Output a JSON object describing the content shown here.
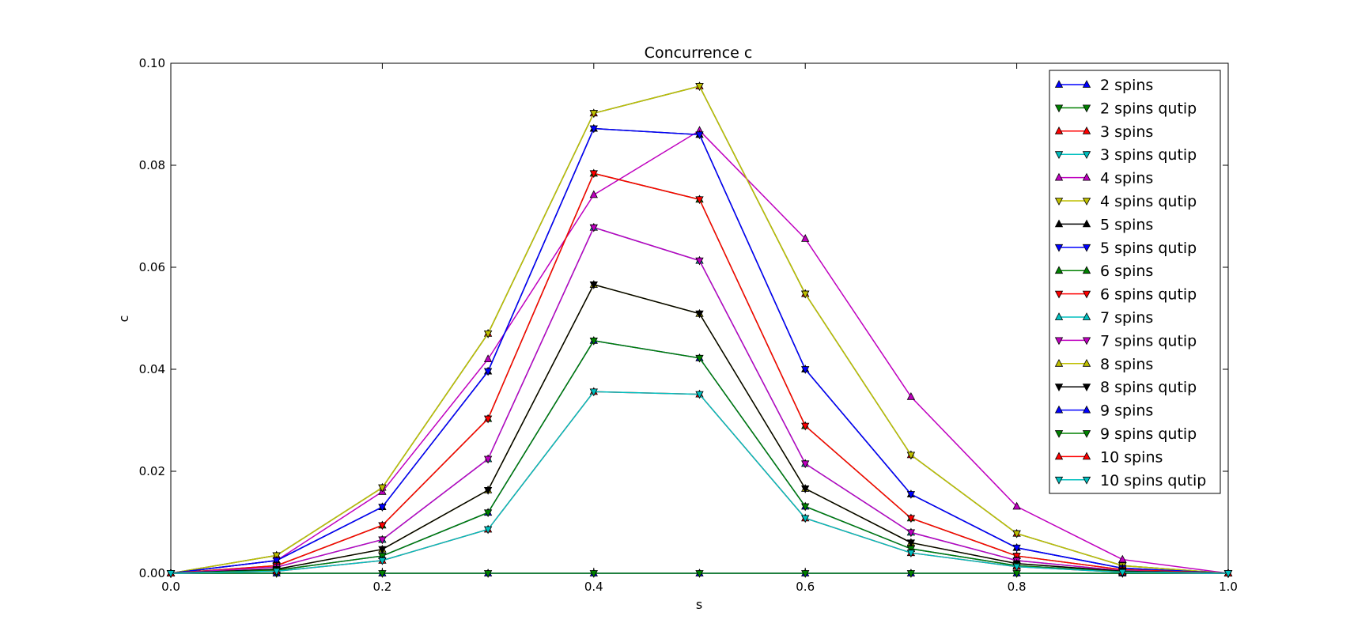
{
  "chart_data": {
    "type": "line",
    "title": "Concurrence c",
    "xlabel": "s",
    "ylabel": "c",
    "xlim": [
      0.0,
      1.0
    ],
    "ylim": [
      0.0,
      0.1
    ],
    "x_ticks": [
      "0.0",
      "0.2",
      "0.4",
      "0.6",
      "0.8",
      "1.0"
    ],
    "y_ticks": [
      "0.00",
      "0.02",
      "0.04",
      "0.06",
      "0.08",
      "0.10"
    ],
    "grid": false,
    "legend_position": "top-right",
    "x": [
      0.0,
      0.1,
      0.2,
      0.3,
      0.4,
      0.5,
      0.6,
      0.7,
      0.8,
      0.9,
      1.0
    ],
    "series": [
      {
        "name": "2 spins",
        "color": "#0000ff",
        "marker": "triangle-up",
        "values": [
          0,
          0,
          0,
          0,
          0,
          0,
          0,
          0,
          0,
          0,
          0
        ]
      },
      {
        "name": "2 spins qutip",
        "color": "#008000",
        "marker": "triangle-down",
        "values": [
          0,
          0,
          0,
          0,
          0,
          0,
          0,
          0,
          0,
          0,
          0
        ]
      },
      {
        "name": "3 spins",
        "color": "#ff0000",
        "marker": "triangle-up",
        "values": [
          0,
          0.0035,
          0.0168,
          0.047,
          0.0902,
          0.0955,
          0.0548,
          0.0232,
          0.0078,
          0.0015,
          0
        ]
      },
      {
        "name": "3 spins qutip",
        "color": "#00bfbf",
        "marker": "triangle-down",
        "values": [
          0,
          0.0035,
          0.0168,
          0.047,
          0.0902,
          0.0955,
          0.0548,
          0.0232,
          0.0078,
          0.0015,
          0
        ]
      },
      {
        "name": "4 spins",
        "color": "#bf00bf",
        "marker": "triangle-up",
        "values": [
          0,
          0.0025,
          0.016,
          0.042,
          0.0742,
          0.0868,
          0.0656,
          0.0346,
          0.0131,
          0.0027,
          0
        ]
      },
      {
        "name": "4 spins qutip",
        "color": "#bfbf00",
        "marker": "triangle-down",
        "values": [
          0,
          0.0035,
          0.0168,
          0.047,
          0.0902,
          0.0955,
          0.0548,
          0.0232,
          0.0078,
          0.0015,
          0
        ]
      },
      {
        "name": "5 spins",
        "color": "#000000",
        "marker": "triangle-up",
        "values": [
          0,
          0.0025,
          0.013,
          0.0396,
          0.0872,
          0.086,
          0.04,
          0.0155,
          0.005,
          0.001,
          0
        ]
      },
      {
        "name": "5 spins qutip",
        "color": "#0000ff",
        "marker": "triangle-down",
        "values": [
          0,
          0.0025,
          0.013,
          0.0396,
          0.0872,
          0.086,
          0.04,
          0.0155,
          0.005,
          0.001,
          0
        ]
      },
      {
        "name": "6 spins",
        "color": "#008000",
        "marker": "triangle-up",
        "values": [
          0,
          0.0015,
          0.0094,
          0.0303,
          0.0784,
          0.0733,
          0.0289,
          0.0108,
          0.0034,
          0.0007,
          0
        ]
      },
      {
        "name": "6 spins qutip",
        "color": "#ff0000",
        "marker": "triangle-down",
        "values": [
          0,
          0.0015,
          0.0094,
          0.0303,
          0.0784,
          0.0733,
          0.0289,
          0.0108,
          0.0034,
          0.0007,
          0
        ]
      },
      {
        "name": "7 spins",
        "color": "#00bfbf",
        "marker": "triangle-up",
        "values": [
          0,
          0.0012,
          0.0066,
          0.0224,
          0.0678,
          0.0613,
          0.0215,
          0.008,
          0.0025,
          0.0005,
          0
        ]
      },
      {
        "name": "7 spins qutip",
        "color": "#bf00bf",
        "marker": "triangle-down",
        "values": [
          0,
          0.0012,
          0.0066,
          0.0224,
          0.0678,
          0.0613,
          0.0215,
          0.008,
          0.0025,
          0.0005,
          0
        ]
      },
      {
        "name": "8 spins",
        "color": "#bfbf00",
        "marker": "triangle-up",
        "values": [
          0,
          0.0008,
          0.0047,
          0.0163,
          0.0566,
          0.0509,
          0.0166,
          0.006,
          0.0019,
          0.0004,
          0
        ]
      },
      {
        "name": "8 spins qutip",
        "color": "#000000",
        "marker": "triangle-down",
        "values": [
          0,
          0.0008,
          0.0047,
          0.0163,
          0.0566,
          0.0509,
          0.0166,
          0.006,
          0.0019,
          0.0004,
          0
        ]
      },
      {
        "name": "9 spins",
        "color": "#0000ff",
        "marker": "triangle-up",
        "values": [
          0,
          0.0006,
          0.0034,
          0.0119,
          0.0456,
          0.0422,
          0.0131,
          0.0048,
          0.0015,
          0.0003,
          0
        ]
      },
      {
        "name": "9 spins qutip",
        "color": "#008000",
        "marker": "triangle-down",
        "values": [
          0,
          0.0006,
          0.0034,
          0.0119,
          0.0456,
          0.0422,
          0.0131,
          0.0048,
          0.0015,
          0.0003,
          0
        ]
      },
      {
        "name": "10 spins",
        "color": "#ff0000",
        "marker": "triangle-up",
        "values": [
          0,
          0.0004,
          0.0025,
          0.0086,
          0.0356,
          0.0351,
          0.0108,
          0.004,
          0.0013,
          0.0002,
          0
        ]
      },
      {
        "name": "10 spins qutip",
        "color": "#00bfbf",
        "marker": "triangle-down",
        "values": [
          0,
          0.0004,
          0.0025,
          0.0086,
          0.0356,
          0.0351,
          0.0108,
          0.004,
          0.0013,
          0.0002,
          0
        ]
      }
    ]
  }
}
